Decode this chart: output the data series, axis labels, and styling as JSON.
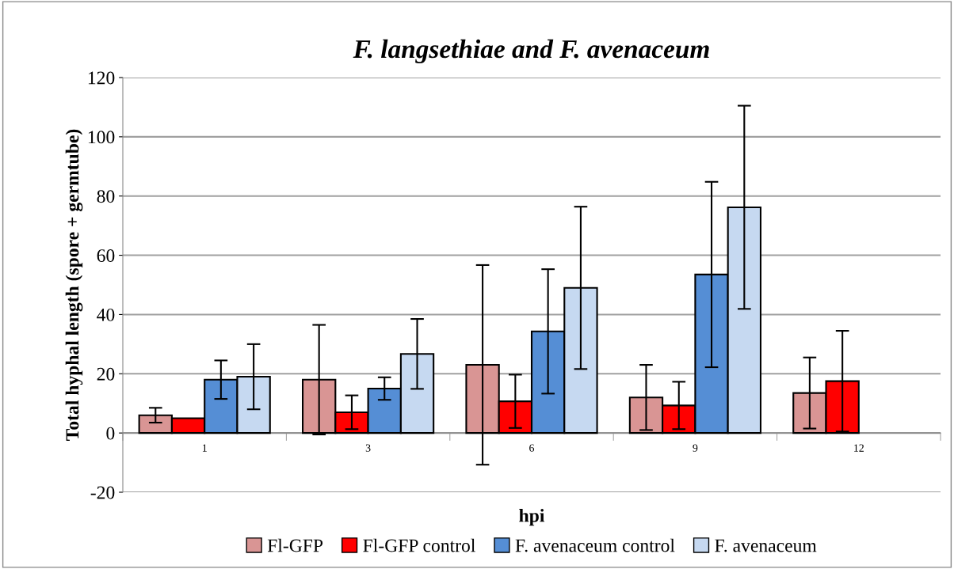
{
  "chart_data": {
    "type": "bar",
    "title": "F. langsethiae and F. avenaceum",
    "xlabel": "hpi",
    "ylabel": "Total hyphal length (spore + germtube)",
    "categories": [
      "1",
      "3",
      "6",
      "9",
      "12"
    ],
    "series": [
      {
        "name": "Fl-GFP",
        "color": "#d99594",
        "values": [
          6,
          18,
          23,
          12,
          13.5
        ],
        "errors": [
          2.5,
          18.5,
          33.7,
          11,
          12
        ]
      },
      {
        "name": "Fl-GFP control",
        "color": "#ff0000",
        "values": [
          5,
          7,
          10.7,
          9.3,
          17.5
        ],
        "errors": [
          null,
          5.7,
          9,
          8,
          17
        ]
      },
      {
        "name": "F. avenaceum control",
        "color": "#558ed5",
        "values": [
          18,
          15,
          34.3,
          53.5,
          null
        ],
        "errors": [
          6.5,
          3.8,
          21,
          31.3,
          null
        ]
      },
      {
        "name": "F. avenaceum",
        "color": "#c6d9f1",
        "values": [
          19,
          26.7,
          49,
          76.2,
          null
        ],
        "errors": [
          11,
          11.8,
          27.4,
          34.3,
          null
        ]
      }
    ],
    "ylim": [
      -20,
      120
    ],
    "yticks": [
      -20,
      0,
      20,
      40,
      60,
      80,
      100,
      120
    ],
    "grid": "y",
    "legend": "bottom"
  }
}
